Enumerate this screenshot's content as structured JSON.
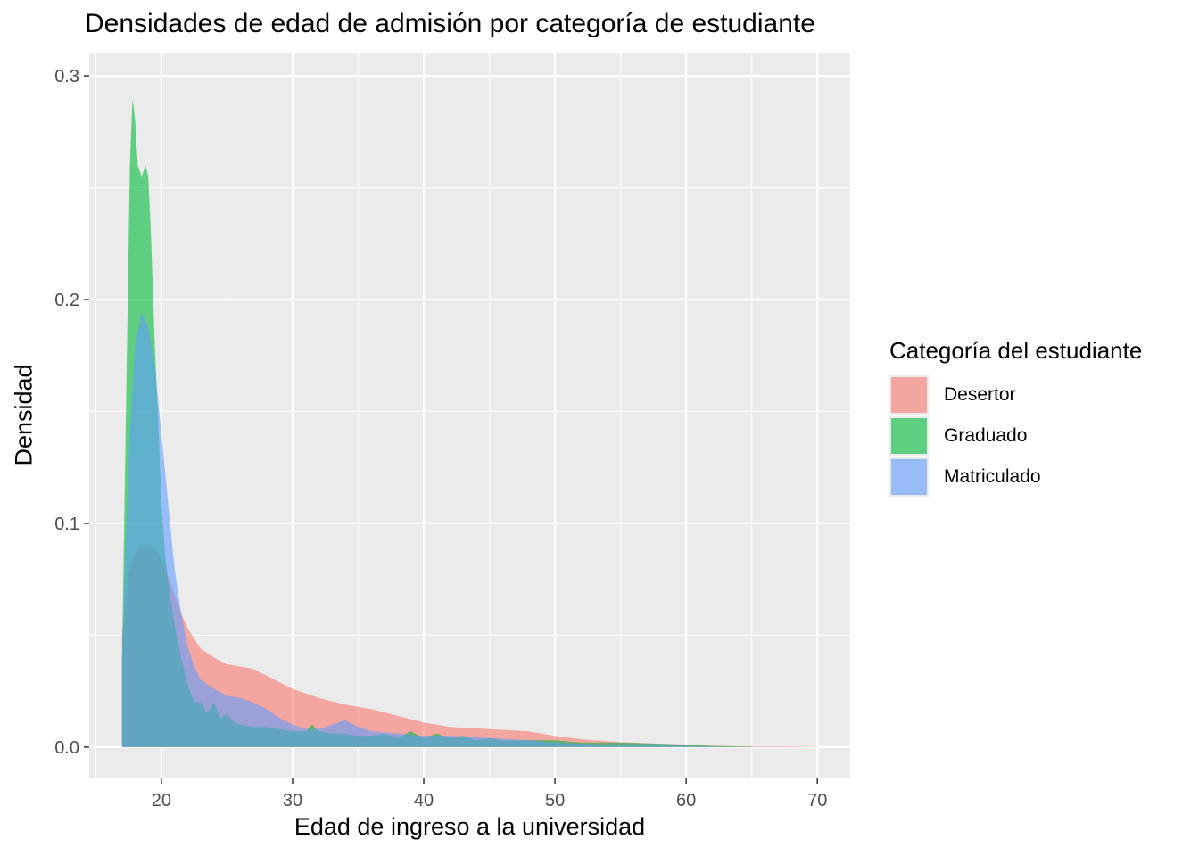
{
  "title": "Densidades de edad de admisión por categoría de estudiante",
  "chart_data": {
    "type": "area",
    "title": "Densidades de edad de admisión por categoría de estudiante",
    "xlabel": "Edad de ingreso a la universidad",
    "ylabel": "Densidad",
    "xlim": [
      14.5,
      72.5
    ],
    "ylim": [
      -0.014,
      0.31
    ],
    "x_ticks": [
      20,
      30,
      40,
      50,
      60,
      70
    ],
    "y_ticks": [
      0.0,
      0.1,
      0.2,
      0.3
    ],
    "x_tick_labels": [
      "20",
      "30",
      "40",
      "50",
      "60",
      "70"
    ],
    "y_tick_labels": [
      "0.0",
      "0.1",
      "0.2",
      "0.3"
    ],
    "grid": true,
    "legend": {
      "title": "Categoría del estudiante",
      "position": "right",
      "entries": [
        "Desertor",
        "Graduado",
        "Matriculado"
      ]
    },
    "series": [
      {
        "name": "Desertor",
        "color": "#F8766D",
        "x": [
          17,
          17.5,
          18,
          18.5,
          19,
          19.5,
          20,
          20.5,
          21,
          21.5,
          22,
          23,
          24,
          25,
          26,
          27,
          28,
          29,
          30,
          32,
          34,
          36,
          38,
          40,
          42,
          45,
          48,
          50,
          52,
          55,
          58,
          60,
          62,
          65,
          68,
          70
        ],
        "values": [
          0.05,
          0.078,
          0.087,
          0.09,
          0.09,
          0.089,
          0.084,
          0.077,
          0.068,
          0.06,
          0.053,
          0.044,
          0.04,
          0.037,
          0.036,
          0.035,
          0.032,
          0.029,
          0.026,
          0.022,
          0.019,
          0.017,
          0.014,
          0.011,
          0.009,
          0.008,
          0.007,
          0.005,
          0.0035,
          0.0022,
          0.0015,
          0.0012,
          0.0006,
          0.0003,
          0.0003,
          0.0002
        ]
      },
      {
        "name": "Graduado",
        "color": "#00BA38",
        "x": [
          17,
          17.3,
          17.6,
          17.8,
          18,
          18.2,
          18.5,
          18.8,
          19,
          19.2,
          19.5,
          19.8,
          20,
          20.3,
          20.6,
          21,
          21.5,
          22,
          22.5,
          23,
          23.5,
          24,
          24.5,
          25,
          25.5,
          26,
          27,
          28,
          29,
          30,
          31,
          31.5,
          32,
          33,
          34,
          35,
          36,
          37,
          38,
          39,
          40,
          41,
          42,
          43,
          44,
          45,
          46,
          48,
          50,
          52,
          55,
          58,
          60,
          62,
          65
        ],
        "values": [
          0.04,
          0.15,
          0.26,
          0.29,
          0.28,
          0.26,
          0.255,
          0.26,
          0.255,
          0.23,
          0.18,
          0.14,
          0.11,
          0.085,
          0.07,
          0.055,
          0.04,
          0.028,
          0.02,
          0.02,
          0.015,
          0.02,
          0.013,
          0.015,
          0.011,
          0.01,
          0.009,
          0.009,
          0.008,
          0.007,
          0.007,
          0.01,
          0.007,
          0.006,
          0.006,
          0.005,
          0.005,
          0.006,
          0.004,
          0.007,
          0.004,
          0.006,
          0.004,
          0.005,
          0.003,
          0.004,
          0.003,
          0.003,
          0.003,
          0.002,
          0.002,
          0.0015,
          0.001,
          0.0005,
          0.0002
        ]
      },
      {
        "name": "Matriculado",
        "color": "#619CFF",
        "x": [
          17,
          17.5,
          18,
          18.5,
          19,
          19.5,
          20,
          20.5,
          21,
          21.5,
          22,
          22.5,
          23,
          24,
          25,
          26,
          27,
          28,
          29,
          30,
          31,
          32,
          33,
          34,
          35,
          36,
          38,
          40,
          42,
          45,
          48,
          50,
          52,
          55,
          58,
          60,
          62
        ],
        "values": [
          0.04,
          0.13,
          0.18,
          0.194,
          0.188,
          0.17,
          0.14,
          0.11,
          0.08,
          0.06,
          0.045,
          0.036,
          0.03,
          0.026,
          0.023,
          0.022,
          0.02,
          0.017,
          0.013,
          0.01,
          0.008,
          0.008,
          0.01,
          0.012,
          0.009,
          0.007,
          0.006,
          0.005,
          0.005,
          0.004,
          0.003,
          0.002,
          0.0015,
          0.001,
          0.0008,
          0.0005,
          0.0002
        ]
      }
    ]
  }
}
